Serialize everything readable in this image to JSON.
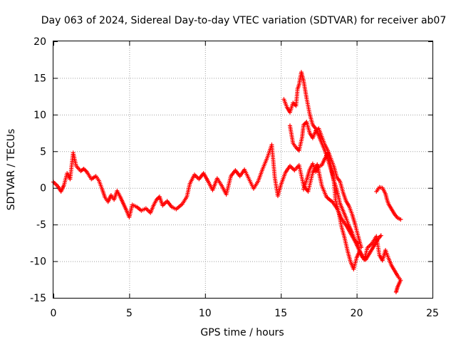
{
  "chart_data": {
    "type": "scatter",
    "title": "Day 063 of 2024, Sidereal Day-to-day VTEC variation (SDTVAR) for receiver ab07",
    "xlabel": "GPS time / hours",
    "ylabel": "SDTVAR / TECUs",
    "xlim": [
      0,
      25
    ],
    "ylim": [
      -15,
      20
    ],
    "xticks": [
      0,
      5,
      10,
      15,
      20,
      25
    ],
    "yticks": [
      -15,
      -10,
      -5,
      0,
      5,
      10,
      15,
      20
    ],
    "grid": true,
    "marker": "+",
    "color": "#ff0000",
    "series": [
      {
        "name": "baseline",
        "points": [
          [
            0.0,
            0.8
          ],
          [
            0.3,
            0.2
          ],
          [
            0.5,
            -0.5
          ],
          [
            0.7,
            0.4
          ],
          [
            0.9,
            2.0
          ],
          [
            1.1,
            1.2
          ],
          [
            1.3,
            4.8
          ],
          [
            1.5,
            3.0
          ],
          [
            1.8,
            2.3
          ],
          [
            2.0,
            2.6
          ],
          [
            2.2,
            2.2
          ],
          [
            2.5,
            1.2
          ],
          [
            2.8,
            1.6
          ],
          [
            3.0,
            1.0
          ],
          [
            3.2,
            -0.1
          ],
          [
            3.4,
            -1.3
          ],
          [
            3.6,
            -1.9
          ],
          [
            3.8,
            -1.0
          ],
          [
            4.0,
            -1.6
          ],
          [
            4.2,
            -0.4
          ],
          [
            4.4,
            -1.2
          ],
          [
            4.6,
            -2.1
          ],
          [
            4.8,
            -3.0
          ],
          [
            5.0,
            -4.0
          ],
          [
            5.2,
            -2.3
          ],
          [
            5.5,
            -2.6
          ],
          [
            5.8,
            -3.1
          ],
          [
            6.1,
            -2.8
          ],
          [
            6.4,
            -3.4
          ],
          [
            6.6,
            -2.4
          ],
          [
            6.8,
            -1.6
          ],
          [
            7.0,
            -1.2
          ],
          [
            7.2,
            -2.4
          ],
          [
            7.5,
            -1.8
          ],
          [
            7.8,
            -2.6
          ],
          [
            8.1,
            -2.9
          ],
          [
            8.5,
            -2.2
          ],
          [
            8.8,
            -1.2
          ],
          [
            9.0,
            0.6
          ],
          [
            9.3,
            1.8
          ],
          [
            9.6,
            1.2
          ],
          [
            9.9,
            2.0
          ],
          [
            10.2,
            0.9
          ],
          [
            10.5,
            -0.3
          ],
          [
            10.8,
            1.3
          ],
          [
            11.1,
            0.3
          ],
          [
            11.4,
            -0.9
          ],
          [
            11.7,
            1.6
          ],
          [
            12.0,
            2.4
          ],
          [
            12.3,
            1.6
          ],
          [
            12.6,
            2.5
          ],
          [
            12.9,
            1.2
          ],
          [
            13.2,
            -0.1
          ],
          [
            13.5,
            0.9
          ],
          [
            13.8,
            2.6
          ],
          [
            14.1,
            4.1
          ],
          [
            14.4,
            5.9
          ],
          [
            14.6,
            1.4
          ],
          [
            14.8,
            -1.1
          ],
          [
            15.0,
            0.4
          ],
          [
            15.3,
            2.1
          ],
          [
            15.6,
            3.0
          ],
          [
            15.9,
            2.4
          ],
          [
            16.2,
            3.1
          ],
          [
            16.5,
            0.3
          ],
          [
            16.8,
            -0.5
          ],
          [
            17.1,
            2.1
          ],
          [
            17.4,
            3.2
          ],
          [
            17.7,
            0.3
          ],
          [
            18.0,
            -1.2
          ],
          [
            18.2,
            -1.6
          ],
          [
            18.4,
            -1.9
          ],
          [
            18.7,
            -2.8
          ],
          [
            19.0,
            -4.2
          ],
          [
            19.3,
            -5.1
          ],
          [
            19.6,
            -6.2
          ],
          [
            19.9,
            -7.3
          ],
          [
            20.1,
            -8.2
          ],
          [
            20.3,
            -9.1
          ],
          [
            20.5,
            -9.8
          ],
          [
            20.7,
            -8.2
          ],
          [
            21.0,
            -7.6
          ],
          [
            21.3,
            -6.6
          ],
          [
            21.5,
            -9.2
          ],
          [
            21.7,
            -9.9
          ],
          [
            21.9,
            -8.5
          ],
          [
            22.1,
            -9.6
          ],
          [
            22.3,
            -10.6
          ],
          [
            22.5,
            -11.3
          ],
          [
            22.7,
            -12.0
          ],
          [
            22.9,
            -12.6
          ],
          [
            22.7,
            -13.5
          ],
          [
            22.6,
            -14.2
          ]
        ]
      },
      {
        "name": "spike",
        "points": [
          [
            15.2,
            12.1
          ],
          [
            15.4,
            11.0
          ],
          [
            15.6,
            10.3
          ],
          [
            15.8,
            11.6
          ],
          [
            16.0,
            11.2
          ],
          [
            16.1,
            13.5
          ],
          [
            16.2,
            14.1
          ],
          [
            16.35,
            15.8
          ],
          [
            16.5,
            14.6
          ],
          [
            16.7,
            12.2
          ],
          [
            16.9,
            10.1
          ],
          [
            17.1,
            8.6
          ],
          [
            17.3,
            8.1
          ],
          [
            17.5,
            7.1
          ],
          [
            17.7,
            6.1
          ],
          [
            17.9,
            5.1
          ],
          [
            18.1,
            3.9
          ],
          [
            18.3,
            2.5
          ],
          [
            18.5,
            1.0
          ],
          [
            18.7,
            -0.3
          ],
          [
            18.9,
            -2.1
          ],
          [
            19.1,
            -3.1
          ],
          [
            19.3,
            -4.1
          ],
          [
            19.5,
            -5.2
          ],
          [
            19.7,
            -6.1
          ],
          [
            19.9,
            -7.2
          ],
          [
            20.1,
            -7.6
          ]
        ]
      },
      {
        "name": "upper-branch",
        "points": [
          [
            15.6,
            8.5
          ],
          [
            15.8,
            6.1
          ],
          [
            16.0,
            5.5
          ],
          [
            16.2,
            5.1
          ],
          [
            16.4,
            6.9
          ],
          [
            16.5,
            8.6
          ],
          [
            16.7,
            9.0
          ],
          [
            16.9,
            7.5
          ],
          [
            17.1,
            6.8
          ],
          [
            17.3,
            7.8
          ],
          [
            17.5,
            8.1
          ],
          [
            17.7,
            7.0
          ],
          [
            17.9,
            5.9
          ],
          [
            18.1,
            5.1
          ],
          [
            18.3,
            4.0
          ],
          [
            18.5,
            2.9
          ],
          [
            18.7,
            1.4
          ],
          [
            18.9,
            0.9
          ],
          [
            19.1,
            -0.6
          ],
          [
            19.3,
            -1.8
          ],
          [
            19.5,
            -2.5
          ],
          [
            19.7,
            -3.6
          ],
          [
            19.9,
            -5.0
          ],
          [
            20.1,
            -6.6
          ],
          [
            20.3,
            -8.1
          ]
        ]
      },
      {
        "name": "mid-branch",
        "points": [
          [
            16.5,
            -0.2
          ],
          [
            16.7,
            1.1
          ],
          [
            16.9,
            2.5
          ],
          [
            17.1,
            3.3
          ],
          [
            17.3,
            2.2
          ],
          [
            17.5,
            2.9
          ],
          [
            17.7,
            3.1
          ],
          [
            17.9,
            4.0
          ],
          [
            18.1,
            4.8
          ],
          [
            18.3,
            3.1
          ],
          [
            18.5,
            0.8
          ],
          [
            18.6,
            -1.6
          ],
          [
            18.8,
            -3.2
          ],
          [
            19.0,
            -5.3
          ],
          [
            19.2,
            -6.8
          ],
          [
            19.4,
            -8.6
          ],
          [
            19.6,
            -10.1
          ],
          [
            19.8,
            -11.1
          ],
          [
            20.0,
            -9.5
          ],
          [
            20.2,
            -8.6
          ],
          [
            20.4,
            -9.5
          ],
          [
            20.6,
            -9.8
          ],
          [
            20.8,
            -9.1
          ],
          [
            21.0,
            -8.4
          ],
          [
            21.2,
            -7.7
          ],
          [
            21.4,
            -7.0
          ],
          [
            21.6,
            -6.5
          ]
        ]
      },
      {
        "name": "tail-branch",
        "points": [
          [
            21.3,
            -0.5
          ],
          [
            21.5,
            0.1
          ],
          [
            21.7,
            0.0
          ],
          [
            21.9,
            -0.8
          ],
          [
            22.0,
            -1.6
          ],
          [
            22.1,
            -2.2
          ],
          [
            22.3,
            -2.9
          ],
          [
            22.5,
            -3.6
          ],
          [
            22.7,
            -4.1
          ],
          [
            22.9,
            -4.3
          ]
        ]
      }
    ]
  }
}
